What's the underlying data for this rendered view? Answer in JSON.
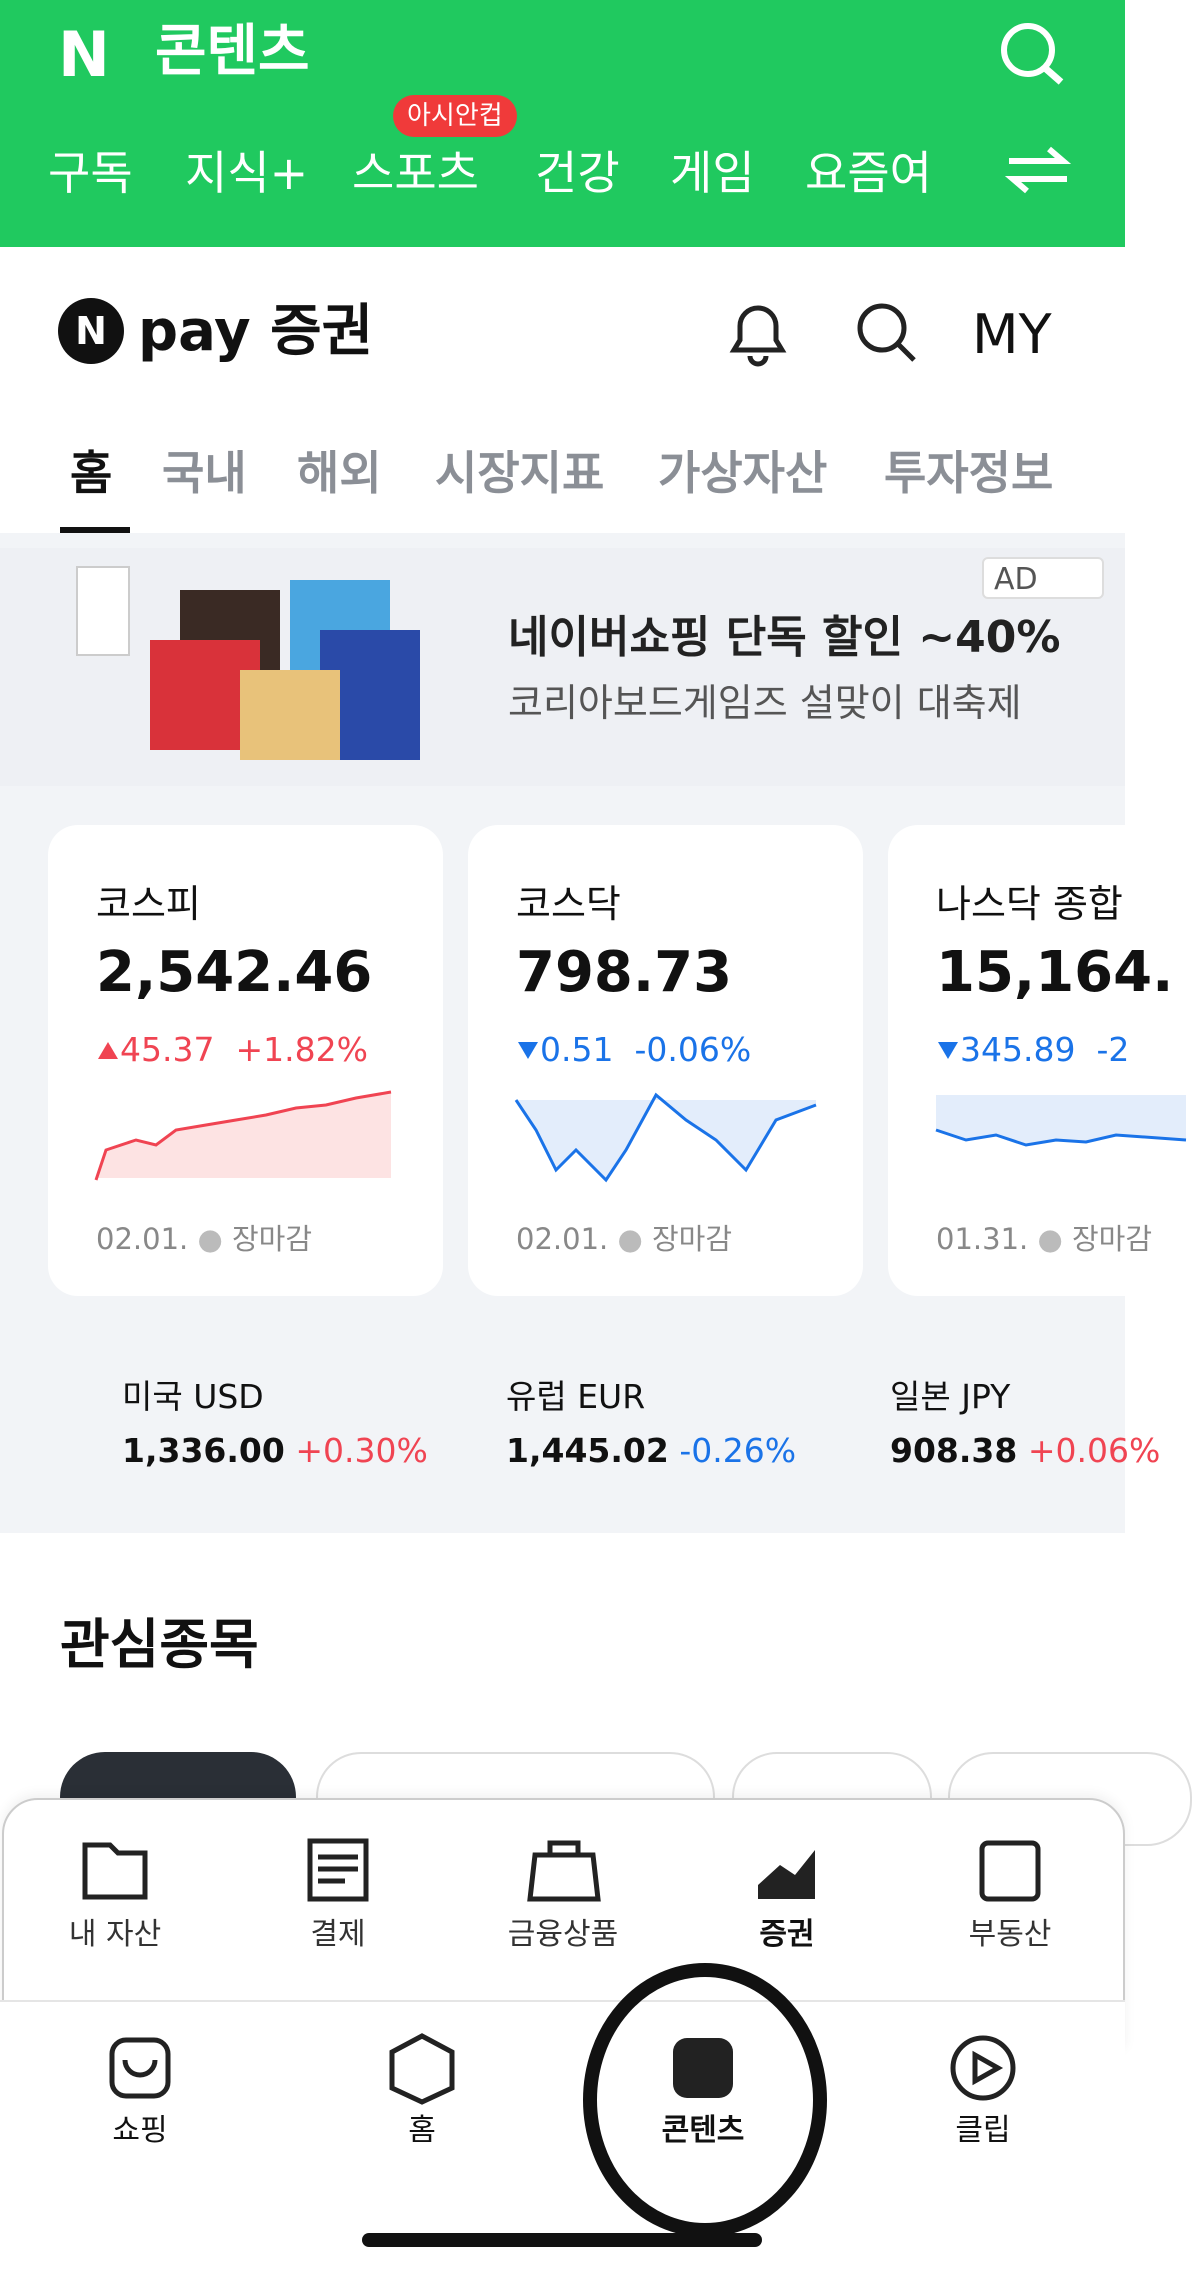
{
  "header": {
    "title": "콘텐츠",
    "badge": "아시안컵",
    "tabs": [
      "구독",
      "지식+",
      "스포츠",
      "건강",
      "게임",
      "요즘여"
    ]
  },
  "pay_header": {
    "logo": "pay 증권",
    "my": "MY"
  },
  "tabs": [
    "홈",
    "국내",
    "해외",
    "시장지표",
    "가상자산",
    "투자정보"
  ],
  "ad": {
    "label": "AD",
    "title": "네이버쇼핑 단독 할인 ~40%",
    "subtitle": "코리아보드게임즈 설맞이 대축제"
  },
  "indices": [
    {
      "name": "코스피",
      "value": "2,542.46",
      "change": "45.37",
      "rate": "+1.82%",
      "direction": "up",
      "date": "02.01.",
      "status": "장마감"
    },
    {
      "name": "코스닥",
      "value": "798.73",
      "change": "0.51",
      "rate": "-0.06%",
      "direction": "down",
      "date": "02.01.",
      "status": "장마감"
    },
    {
      "name": "나스닥 종합",
      "value": "15,164.",
      "change": "345.89",
      "rate": "-2",
      "direction": "down",
      "date": "01.31.",
      "status": "장마감"
    }
  ],
  "currencies": [
    {
      "name": "미국 USD",
      "value": "1,336.00",
      "rate": "+0.30%",
      "direction": "up"
    },
    {
      "name": "유럽 EUR",
      "value": "1,445.02",
      "rate": "-0.26%",
      "direction": "down"
    },
    {
      "name": "일본 JPY",
      "value": "908.38",
      "rate": "+0.06%",
      "direction": "up"
    }
  ],
  "watchlist": {
    "title": "관심종목"
  },
  "pay_nav": [
    "내 자산",
    "결제",
    "금융상품",
    "증권",
    "부동산"
  ],
  "bottom_nav": [
    "쇼핑",
    "홈",
    "콘텐츠",
    "클립"
  ]
}
